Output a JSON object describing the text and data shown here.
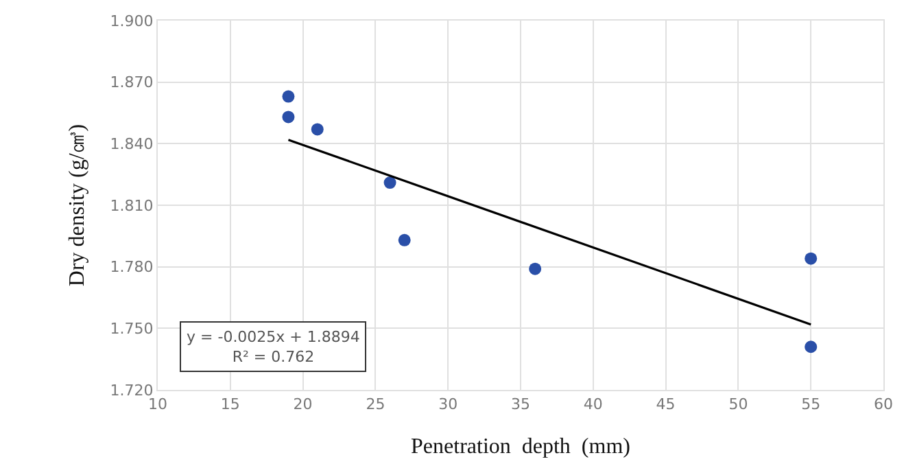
{
  "chart_data": {
    "type": "scatter",
    "xlabel": "Penetration  depth  (mm)",
    "ylabel": "Dry density (g/㎤)",
    "series": [
      {
        "color": "#2a4fa8",
        "marker": "circle",
        "x": [
          19,
          19,
          21,
          26,
          27,
          36,
          55,
          55
        ],
        "values": [
          1.863,
          1.853,
          1.847,
          1.821,
          1.793,
          1.779,
          1.784,
          1.741
        ]
      },
      {
        "type": "line",
        "marker": "none",
        "color": "#000000",
        "x": [
          19,
          55
        ],
        "values": [
          1.8419,
          1.7519
        ]
      }
    ],
    "xlim": [
      10,
      60
    ],
    "xticks": [
      10,
      15,
      20,
      25,
      30,
      35,
      40,
      45,
      50,
      55,
      60
    ],
    "ylim": [
      1.72,
      1.9
    ],
    "yticks": [
      {
        "value": 1.72,
        "label": "1.720"
      },
      {
        "value": 1.75,
        "label": "1.750"
      },
      {
        "value": 1.78,
        "label": "1.780"
      },
      {
        "value": 1.81,
        "label": "1.810"
      },
      {
        "value": 1.84,
        "label": "1.840"
      },
      {
        "value": 1.87,
        "label": "1.870"
      },
      {
        "value": 1.9,
        "label": "1.900"
      }
    ],
    "grid": true,
    "annotations": [
      "y = -0.0025x + 1.8894\nR² = 0.762"
    ]
  }
}
